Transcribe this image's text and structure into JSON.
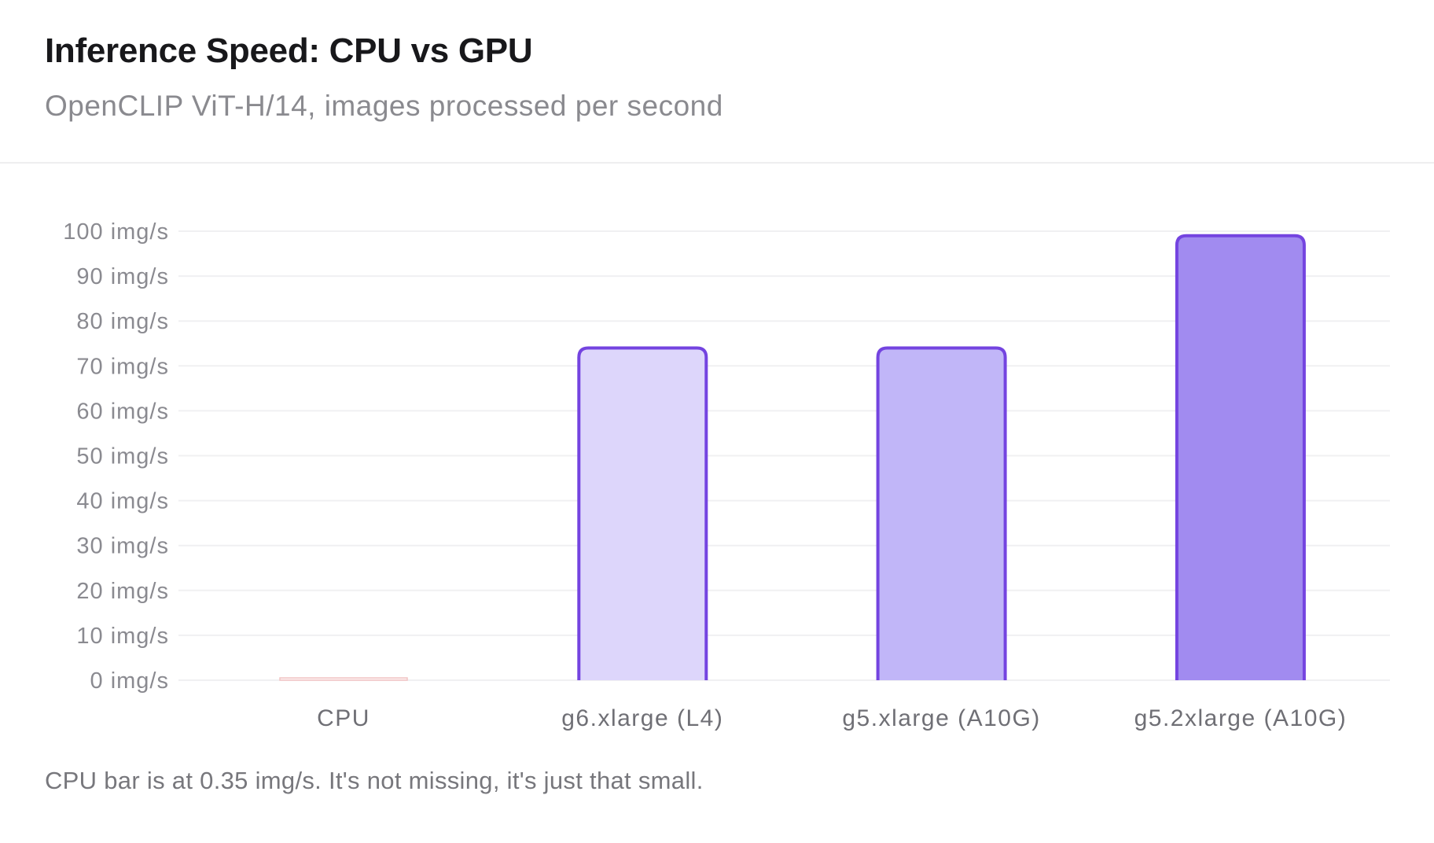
{
  "header": {
    "title": "Inference Speed: CPU vs GPU",
    "subtitle": "OpenCLIP ViT-H/14, images processed per second"
  },
  "footnote": "CPU bar is at 0.35 img/s. It's not missing, it's just that small.",
  "chart_data": {
    "type": "bar",
    "title": "Inference Speed: CPU vs GPU",
    "subtitle": "OpenCLIP ViT-H/14, images processed per second",
    "categories": [
      "CPU",
      "g6.xlarge (L4)",
      "g5.xlarge (A10G)",
      "g5.2xlarge (A10G)"
    ],
    "values": [
      0.35,
      74,
      74,
      99
    ],
    "ylim": [
      0,
      100
    ],
    "yticks": [
      0,
      10,
      20,
      30,
      40,
      50,
      60,
      70,
      80,
      90,
      100
    ],
    "ytick_labels": [
      "0 img/s",
      "10 img/s",
      "20 img/s",
      "30 img/s",
      "40 img/s",
      "50 img/s",
      "60 img/s",
      "70 img/s",
      "80 img/s",
      "90 img/s",
      "100 img/s"
    ],
    "grid": true,
    "legend": "none",
    "colors": {
      "fills": [
        "#fdf2f2",
        "#ddd6fb",
        "#c1b6f8",
        "#a18bf0"
      ],
      "strokes": [
        "#f2c4c4",
        "#7444e0",
        "#7444e0",
        "#7444e0"
      ],
      "grid": "#f0f0f2",
      "tick_text": "#8a8a90"
    }
  }
}
